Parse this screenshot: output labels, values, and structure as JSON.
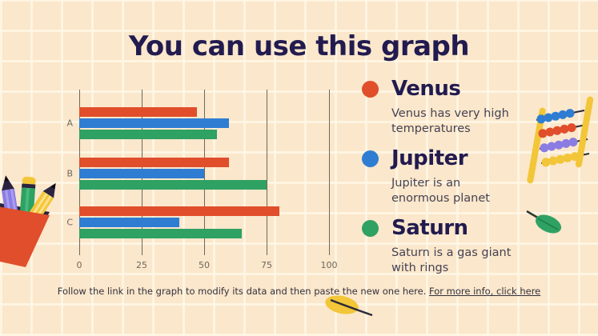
{
  "slide": {
    "title": "You can use this graph",
    "background_color": "#FBE7CB"
  },
  "chart_data": {
    "type": "bar",
    "orientation": "horizontal",
    "categories": [
      "A",
      "B",
      "C"
    ],
    "series": [
      {
        "name": "Venus",
        "color": "#E04E2B",
        "values": [
          47,
          60,
          80
        ]
      },
      {
        "name": "Jupiter",
        "color": "#2F7DD3",
        "values": [
          60,
          50,
          40
        ]
      },
      {
        "name": "Saturn",
        "color": "#2EA163",
        "values": [
          55,
          75,
          65
        ]
      }
    ],
    "xlim": [
      0,
      100
    ],
    "x_ticks": [
      "0",
      "25",
      "50",
      "75",
      "100"
    ],
    "grid": true,
    "legend_position": "right"
  },
  "legend": {
    "items": [
      {
        "name": "Venus",
        "color": "#E04E2B",
        "description": "Venus has very high temperatures"
      },
      {
        "name": "Jupiter",
        "color": "#2F7DD3",
        "description": "Jupiter is an enormous planet"
      },
      {
        "name": "Saturn",
        "color": "#2EA163",
        "description": "Saturn is a gas giant with rings"
      }
    ]
  },
  "footer": {
    "text": "Follow the link in the graph to modify its data and then paste the new one here.",
    "link_text": "For more info, click here"
  },
  "decoration_names": {
    "pencils": "pencil-cup-illustration",
    "abacus": "abacus-illustration",
    "green_leaf": "green-leaf-illustration",
    "yellow_leaf": "yellow-leaf-illustration"
  }
}
